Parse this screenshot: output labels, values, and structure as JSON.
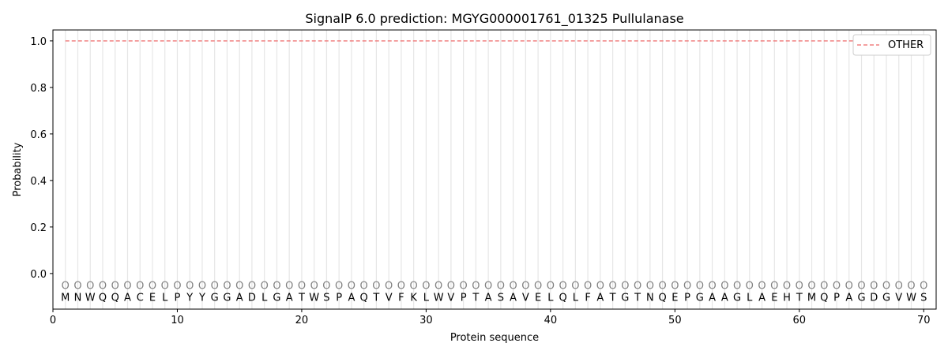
{
  "chart_data": {
    "type": "line",
    "title": "SignalP 6.0 prediction: MGYG000001761_01325 Pullulanase",
    "xlabel": "Protein sequence",
    "ylabel": "Probability",
    "xlim": [
      0,
      71
    ],
    "ylim": [
      -0.153,
      1.047
    ],
    "xticks": [
      0,
      10,
      20,
      30,
      40,
      50,
      60,
      70
    ],
    "yticks": [
      0.0,
      0.2,
      0.4,
      0.6,
      0.8,
      1.0
    ],
    "sequence": "MNWQQACELPYYGGADLGATWSPAQTVFKLWVPTASAVELQLFATGTNQEPGAAGLAEHTMQPAGDGVWS",
    "region_labels": "OOOOOOOOOOOOOOOOOOOOOOOOOOOOOOOOOOOOOOOOOOOOOOOOOOOOOOOOOOOOOOOOOOOOOO",
    "series": [
      {
        "name": "OTHER",
        "x_range": [
          1,
          70
        ],
        "value": 1.0,
        "color": "#f08080",
        "style": "dashed"
      }
    ],
    "legend": "top-right",
    "grid": "vertical lines at each residue"
  }
}
